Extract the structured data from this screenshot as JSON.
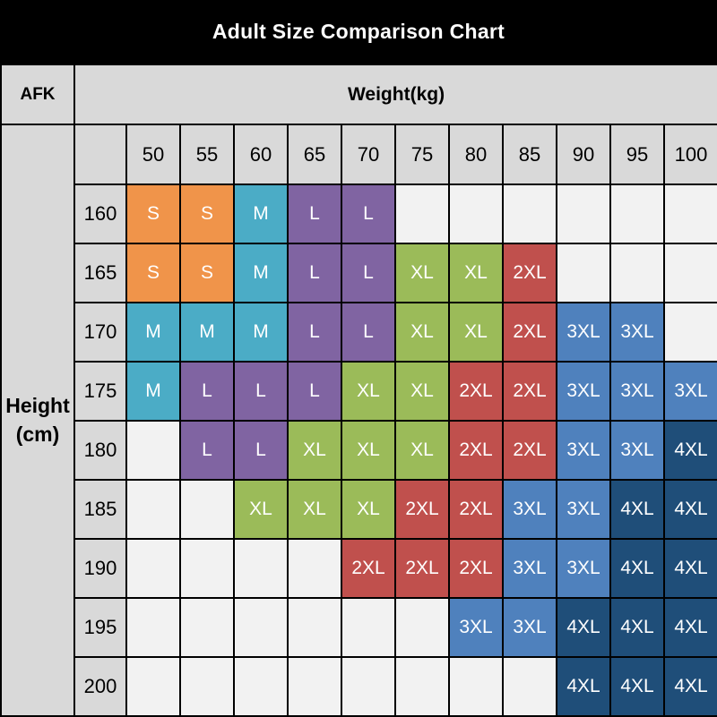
{
  "title": "Adult Size Comparison Chart",
  "chart_data": {
    "type": "heatmap",
    "title": "Adult Size Comparison Chart",
    "corner_label": "AFK",
    "x_axis_label": "Weight(kg)",
    "y_axis_label": "Height\n(cm)",
    "columns": [
      "50",
      "55",
      "60",
      "65",
      "70",
      "75",
      "80",
      "85",
      "90",
      "95",
      "100"
    ],
    "rows": [
      "160",
      "165",
      "170",
      "175",
      "180",
      "185",
      "190",
      "195",
      "200"
    ],
    "values": [
      [
        "S",
        "S",
        "M",
        "L",
        "L",
        "",
        "",
        "",
        "",
        "",
        ""
      ],
      [
        "S",
        "S",
        "M",
        "L",
        "L",
        "XL",
        "XL",
        "2XL",
        "",
        "",
        ""
      ],
      [
        "M",
        "M",
        "M",
        "L",
        "L",
        "XL",
        "XL",
        "2XL",
        "3XL",
        "3XL",
        ""
      ],
      [
        "M",
        "L",
        "L",
        "L",
        "XL",
        "XL",
        "2XL",
        "2XL",
        "3XL",
        "3XL",
        "3XL"
      ],
      [
        "",
        "L",
        "L",
        "XL",
        "XL",
        "XL",
        "2XL",
        "2XL",
        "3XL",
        "3XL",
        "4XL"
      ],
      [
        "",
        "",
        "XL",
        "XL",
        "XL",
        "2XL",
        "2XL",
        "3XL",
        "3XL",
        "4XL",
        "4XL"
      ],
      [
        "",
        "",
        "",
        "",
        "2XL",
        "2XL",
        "2XL",
        "3XL",
        "3XL",
        "4XL",
        "4XL"
      ],
      [
        "",
        "",
        "",
        "",
        "",
        "",
        "3XL",
        "3XL",
        "4XL",
        "4XL",
        "4XL"
      ],
      [
        "",
        "",
        "",
        "",
        "",
        "",
        "",
        "",
        "4XL",
        "4XL",
        "4XL"
      ]
    ],
    "sizes_legend": [
      "S",
      "M",
      "L",
      "XL",
      "2XL",
      "3XL",
      "4XL"
    ],
    "size_colors": {
      "S": "#f0944a",
      "M": "#4bacc6",
      "L": "#8064a2",
      "XL": "#9bbb59",
      "2XL": "#c0504d",
      "3XL": "#4f81bd",
      "4XL": "#1f4e79"
    },
    "layout": {
      "grid": true,
      "legend": "none",
      "title_position": "top-center"
    }
  },
  "colors": {
    "page_background": "#000000",
    "title_text": "#ffffff",
    "header_bg": "#d9d9d9",
    "header_text": "#000000",
    "empty_cell": "#f2f2f2",
    "grid_border": "#000000",
    "size_cell_text": "#ffffff"
  }
}
